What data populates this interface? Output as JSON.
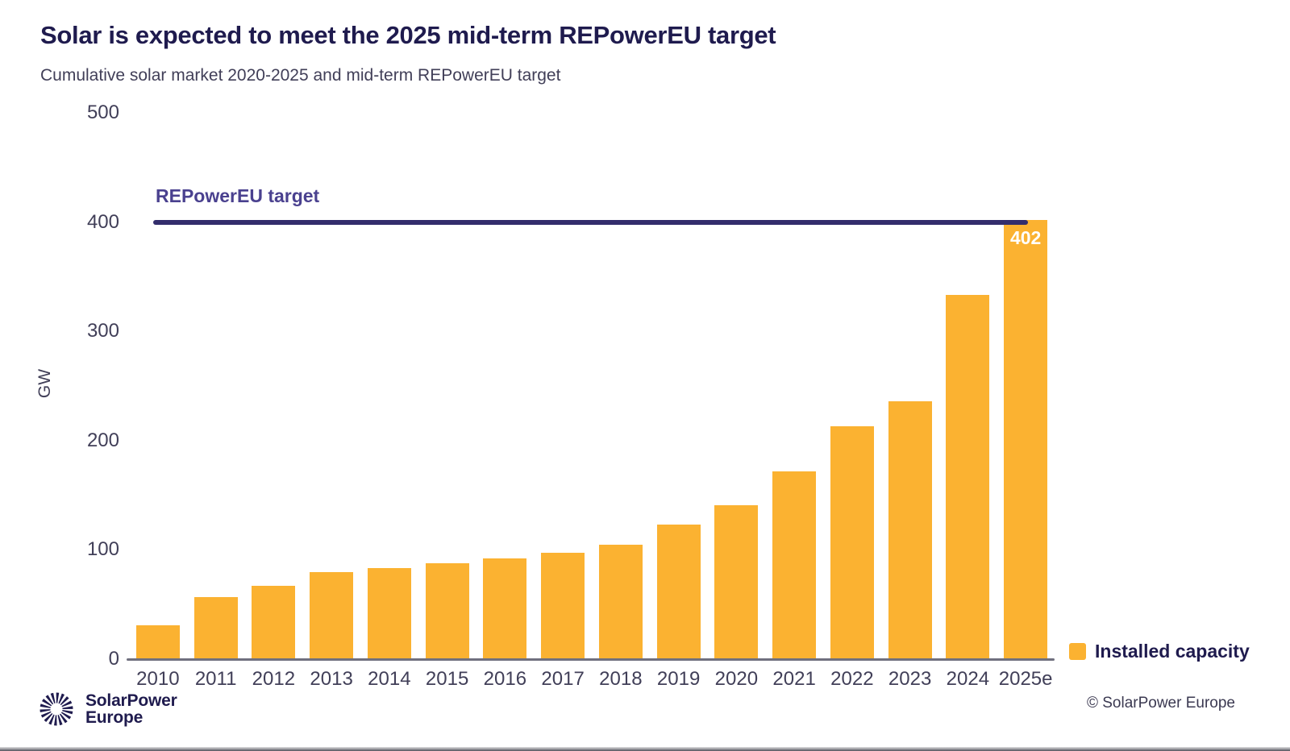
{
  "header": {
    "title": "Solar is expected to meet the 2025 mid-term REPowerEU target",
    "subtitle": "Cumulative solar market 2020-2025 and mid-term REPowerEU target"
  },
  "chart_data": {
    "type": "bar",
    "categories": [
      "2010",
      "2011",
      "2012",
      "2013",
      "2014",
      "2015",
      "2016",
      "2017",
      "2018",
      "2019",
      "2020",
      "2021",
      "2022",
      "2023",
      "2024",
      "2025e"
    ],
    "values": [
      31,
      57,
      67,
      80,
      83,
      88,
      92,
      97,
      105,
      123,
      141,
      172,
      213,
      236,
      333,
      402
    ],
    "series_name": "Installed capacity",
    "title": "Solar is expected to meet the 2025 mid-term REPowerEU target",
    "subtitle": "Cumulative solar market 2020-2025 and mid-term REPowerEU target",
    "xlabel": "",
    "ylabel": "GW",
    "ylim": [
      0,
      500
    ],
    "yticks": [
      0,
      100,
      200,
      300,
      400,
      500
    ],
    "grid": false,
    "legend_position": "bottom-right",
    "target_line": {
      "label": "REPowerEU target",
      "value": 400
    },
    "bar_value_labels": {
      "2025e": "402"
    }
  },
  "legend": {
    "label": "Installed capacity"
  },
  "footer": {
    "brand_line1": "SolarPower",
    "brand_line2": "Europe",
    "copyright": "© SolarPower Europe"
  },
  "colors": {
    "bar": "#FBB231",
    "target_line": "#332D6C",
    "target_label": "#4A418F",
    "title": "#1F1B4E",
    "text": "#413F58",
    "axis": "#70707F",
    "copyright": "#3B3951",
    "bar_value_label": "#FFFFFF"
  }
}
